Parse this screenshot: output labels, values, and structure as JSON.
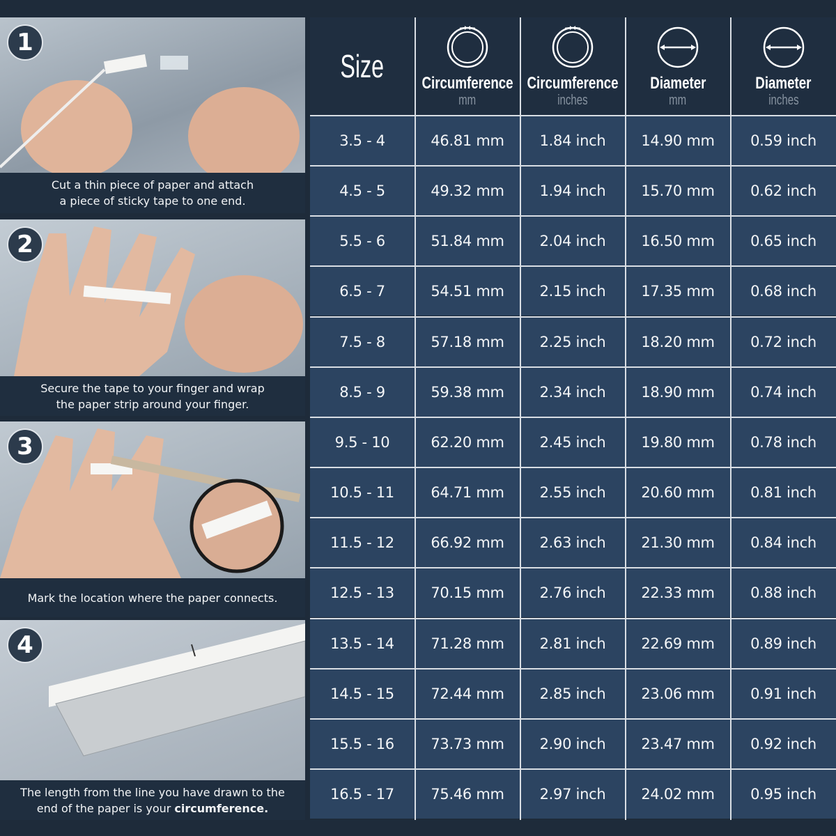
{
  "steps": [
    {
      "number": "1",
      "caption": "Cut a thin piece of paper and attach a piece of sticky tape to one end.",
      "caption_line1": "Cut a thin piece of paper and attach",
      "caption_line2": "a piece of sticky tape to one end."
    },
    {
      "number": "2",
      "caption_line1": "Secure the tape to your finger and wrap",
      "caption_line2": "the paper strip around your finger."
    },
    {
      "number": "3",
      "caption_line1": "Mark the location where the paper connects."
    },
    {
      "number": "4",
      "caption_line1": "The length from the line you have drawn to the",
      "caption_line2_pre": "end of the paper is your ",
      "caption_line2_bold": "circumference."
    }
  ],
  "table": {
    "headers": [
      {
        "title": "Size",
        "unit": "",
        "icon": "none"
      },
      {
        "title": "Circumference",
        "unit": "mm",
        "icon": "ring-circumference-icon"
      },
      {
        "title": "Circumference",
        "unit": "inches",
        "icon": "ring-circumference-icon"
      },
      {
        "title": "Diameter",
        "unit": "mm",
        "icon": "diameter-icon"
      },
      {
        "title": "Diameter",
        "unit": "inches",
        "icon": "diameter-icon"
      }
    ],
    "rows": [
      [
        "3.5 - 4",
        "46.81 mm",
        "1.84 inch",
        "14.90 mm",
        "0.59 inch"
      ],
      [
        "4.5 - 5",
        "49.32 mm",
        "1.94 inch",
        "15.70 mm",
        "0.62 inch"
      ],
      [
        "5.5 - 6",
        "51.84 mm",
        "2.04 inch",
        "16.50 mm",
        "0.65 inch"
      ],
      [
        "6.5 - 7",
        "54.51 mm",
        "2.15 inch",
        "17.35 mm",
        "0.68 inch"
      ],
      [
        "7.5 - 8",
        "57.18 mm",
        "2.25 inch",
        "18.20 mm",
        "0.72 inch"
      ],
      [
        "8.5 - 9",
        "59.38 mm",
        "2.34 inch",
        "18.90 mm",
        "0.74 inch"
      ],
      [
        "9.5 - 10",
        "62.20 mm",
        "2.45 inch",
        "19.80 mm",
        "0.78 inch"
      ],
      [
        "10.5 - 11",
        "64.71 mm",
        "2.55 inch",
        "20.60 mm",
        "0.81 inch"
      ],
      [
        "11.5 - 12",
        "66.92 mm",
        "2.63 inch",
        "21.30 mm",
        "0.84 inch"
      ],
      [
        "12.5 - 13",
        "70.15 mm",
        "2.76 inch",
        "22.33 mm",
        "0.88 inch"
      ],
      [
        "13.5 - 14",
        "71.28 mm",
        "2.81 inch",
        "22.69 mm",
        "0.89 inch"
      ],
      [
        "14.5 - 15",
        "72.44 mm",
        "2.85 inch",
        "23.06 mm",
        "0.91 inch"
      ],
      [
        "15.5 - 16",
        "73.73 mm",
        "2.90 inch",
        "23.47 mm",
        "0.92 inch"
      ],
      [
        "16.5 - 17",
        "75.46 mm",
        "2.97 inch",
        "24.02 mm",
        "0.95 inch"
      ]
    ]
  },
  "colors": {
    "background": "#1e2b3a",
    "header": "#1f2e40",
    "cell": "#2c4461",
    "grid": "#d9dee4"
  }
}
